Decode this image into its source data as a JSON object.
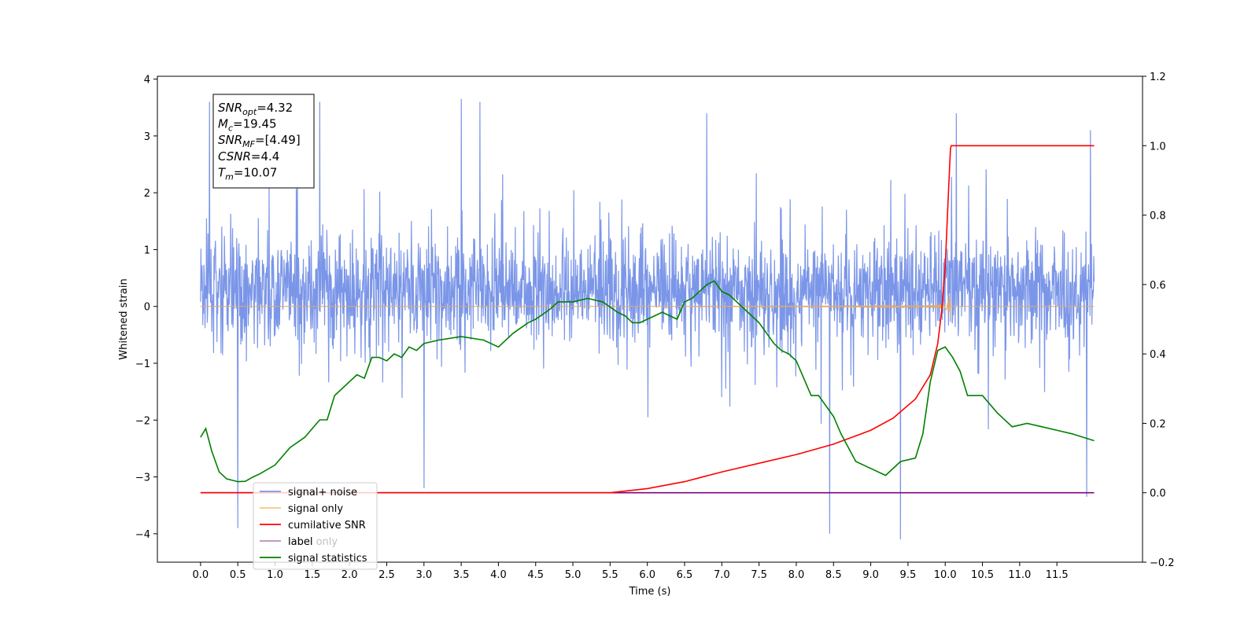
{
  "chart_data": {
    "type": "line",
    "xlabel": "Time (s)",
    "ylabel": "Whitened strain",
    "xlim": [
      -0.58,
      12.65
    ],
    "ylim": [
      -4.5,
      4.05
    ],
    "y2lim": [
      -0.2,
      1.2
    ],
    "x_ticks": [
      "0.0",
      "0.5",
      "1.0",
      "1.5",
      "2.0",
      "2.5",
      "3.0",
      "3.5",
      "4.0",
      "4.5",
      "5.0",
      "5.5",
      "6.0",
      "6.5",
      "7.0",
      "7.5",
      "8.0",
      "8.5",
      "9.0",
      "9.5",
      "10.0",
      "10.5",
      "11.0",
      "11.5"
    ],
    "y_ticks": [
      "−4",
      "−3",
      "−2",
      "−1",
      "0",
      "1",
      "2",
      "3",
      "4"
    ],
    "y2_ticks": [
      "−0.2",
      "0.0",
      "0.2",
      "0.4",
      "0.6",
      "0.8",
      "1.0",
      "1.2"
    ],
    "grid": false,
    "legend_position": "lower-left",
    "legend": [
      "signal+ noise",
      "signal only",
      "cumilative SNR",
      "label",
      "label only",
      "signal statistics"
    ],
    "stats_box": [
      {
        "main": "SNR",
        "sub": "opt",
        "value": "=4.32"
      },
      {
        "main": "M",
        "sub": "c",
        "value": "=19.45"
      },
      {
        "main": "SNR",
        "sub": "MF",
        "value": "=[4.49]"
      },
      {
        "main": "CSNR",
        "sub": "",
        "value": "=4.4"
      },
      {
        "main": "T",
        "sub": "m",
        "value": "=10.07"
      }
    ],
    "series": [
      {
        "name": "signal+ noise",
        "color": "#7b96e8",
        "axis": "left",
        "x_range": [
          0.0,
          12.0
        ],
        "typical_range": [
          -1.6,
          2.2
        ],
        "spikes": [
          [
            0.12,
            3.6
          ],
          [
            0.5,
            -3.9
          ],
          [
            1.6,
            3.6
          ],
          [
            3.0,
            -3.2
          ],
          [
            3.5,
            3.65
          ],
          [
            3.75,
            3.6
          ],
          [
            6.8,
            3.4
          ],
          [
            8.45,
            -4.0
          ],
          [
            9.4,
            -4.1
          ],
          [
            10.15,
            3.4
          ],
          [
            11.95,
            3.1
          ],
          [
            11.9,
            -3.35
          ]
        ]
      },
      {
        "name": "signal only",
        "color": "#e0a870",
        "axis": "left",
        "x_range": [
          0.0,
          12.0
        ],
        "chirp_peak_time": 10.07,
        "chirp_peak_amplitude": 0.78
      },
      {
        "name": "cumilative SNR",
        "color": "#ff0000",
        "axis": "right",
        "x": [
          0.0,
          5.5,
          6.0,
          6.5,
          7.0,
          7.5,
          8.0,
          8.5,
          9.0,
          9.3,
          9.6,
          9.8,
          9.9,
          9.95,
          10.0,
          10.03,
          10.07,
          10.08,
          12.0
        ],
        "y": [
          0.0,
          0.0,
          0.012,
          0.032,
          0.06,
          0.085,
          0.11,
          0.14,
          0.18,
          0.215,
          0.27,
          0.34,
          0.43,
          0.52,
          0.65,
          0.8,
          0.99,
          1.0,
          1.0
        ]
      },
      {
        "name": "label",
        "color": "#800080",
        "axis": "right",
        "x": [
          0.0,
          12.0
        ],
        "y": [
          0.0,
          0.0
        ]
      },
      {
        "name": "signal statistics",
        "color": "#008000",
        "axis": "right",
        "x": [
          0.0,
          0.07,
          0.15,
          0.25,
          0.35,
          0.5,
          0.6,
          0.7,
          0.8,
          1.0,
          1.2,
          1.4,
          1.6,
          1.7,
          1.8,
          2.0,
          2.1,
          2.2,
          2.3,
          2.4,
          2.5,
          2.6,
          2.7,
          2.8,
          2.9,
          3.0,
          3.2,
          3.5,
          3.8,
          4.0,
          4.2,
          4.4,
          4.5,
          4.7,
          4.8,
          5.0,
          5.2,
          5.4,
          5.6,
          5.7,
          5.8,
          5.9,
          6.0,
          6.2,
          6.4,
          6.5,
          6.6,
          6.8,
          6.9,
          7.0,
          7.1,
          7.2,
          7.3,
          7.5,
          7.7,
          7.8,
          7.9,
          8.0,
          8.1,
          8.2,
          8.3,
          8.4,
          8.5,
          8.6,
          8.8,
          9.0,
          9.2,
          9.4,
          9.6,
          9.7,
          9.8,
          9.9,
          10.0,
          10.1,
          10.2,
          10.3,
          10.5,
          10.7,
          10.9,
          11.1,
          11.3,
          11.5,
          11.7,
          12.0
        ],
        "y": [
          0.16,
          0.185,
          0.12,
          0.06,
          0.04,
          0.032,
          0.033,
          0.045,
          0.055,
          0.08,
          0.13,
          0.16,
          0.21,
          0.21,
          0.28,
          0.32,
          0.34,
          0.33,
          0.39,
          0.39,
          0.38,
          0.4,
          0.39,
          0.42,
          0.41,
          0.43,
          0.44,
          0.45,
          0.44,
          0.42,
          0.46,
          0.49,
          0.5,
          0.53,
          0.55,
          0.55,
          0.56,
          0.55,
          0.52,
          0.51,
          0.49,
          0.49,
          0.5,
          0.52,
          0.5,
          0.55,
          0.56,
          0.6,
          0.61,
          0.58,
          0.57,
          0.55,
          0.53,
          0.49,
          0.43,
          0.41,
          0.4,
          0.38,
          0.33,
          0.28,
          0.28,
          0.25,
          0.22,
          0.17,
          0.09,
          0.07,
          0.05,
          0.09,
          0.1,
          0.17,
          0.32,
          0.41,
          0.42,
          0.39,
          0.35,
          0.28,
          0.28,
          0.23,
          0.19,
          0.2,
          0.19,
          0.18,
          0.17,
          0.15
        ]
      }
    ]
  }
}
